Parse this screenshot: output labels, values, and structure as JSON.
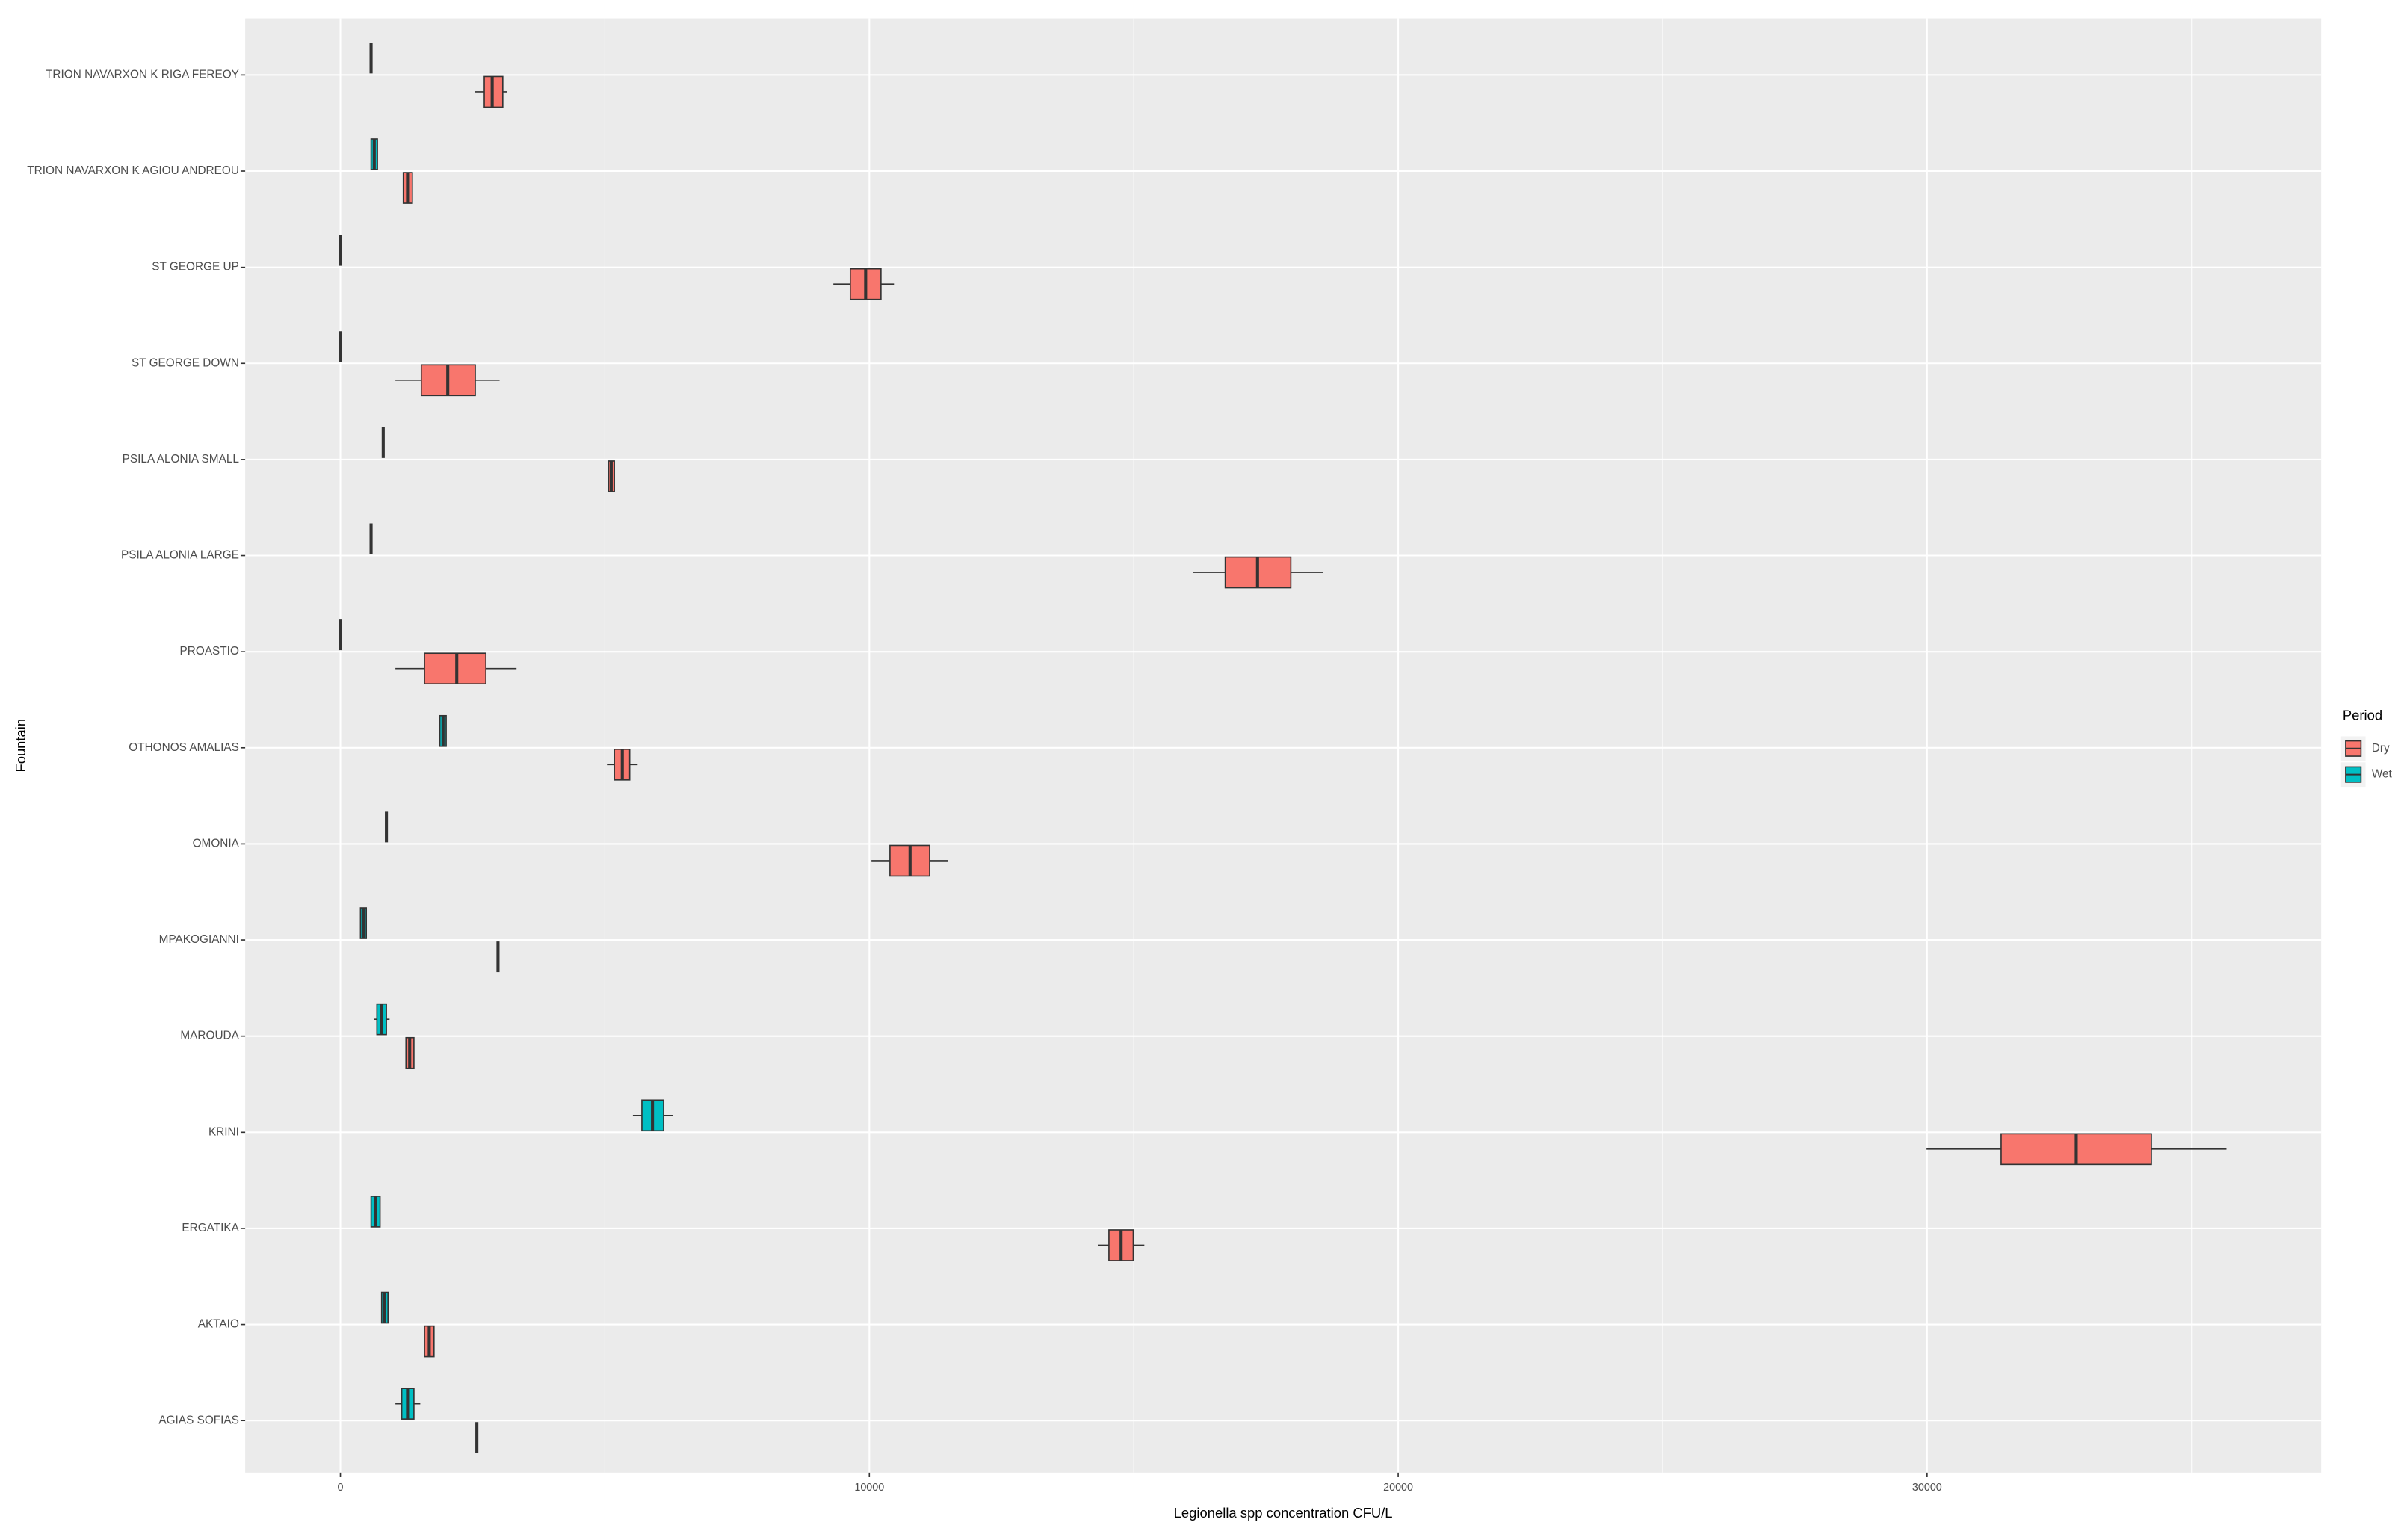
{
  "chart_data": {
    "type": "boxplot",
    "orientation": "horizontal",
    "x_label": "Legionella spp concentration CFU/L",
    "y_label": "Fountain",
    "legend_title": "Period",
    "legend_position": "right",
    "grid": true,
    "xlim": [
      -1800,
      37450
    ],
    "xticks": [
      0,
      10000,
      20000,
      30000
    ],
    "xminor": [
      5000,
      15000,
      25000,
      35000
    ],
    "categories": [
      "TRION NAVARXON K RIGA FEREOY",
      "TRION NAVARXON K AGIOU ANDREOU",
      "ST GEORGE UP",
      "ST GEORGE DOWN",
      "PSILA ALONIA SMALL",
      "PSILA ALONIA LARGE",
      "PROASTIO",
      "OTHONOS AMALIAS",
      "OMONIA",
      "MPAKOGIANNI",
      "MAROUDA",
      "KRINI",
      "ERGATIKA",
      "AKTAIO",
      "AGIAS SOFIAS"
    ],
    "series": [
      {
        "name": "Dry",
        "color": "#F8766D",
        "min": [
          2550,
          1190,
          9320,
          1040,
          5070,
          16120,
          1040,
          5040,
          10040,
          2980,
          1240,
          29990,
          14330,
          1590,
          2580
        ],
        "q1": [
          2720,
          1190,
          9640,
          1530,
          5070,
          16730,
          1590,
          5180,
          10390,
          2980,
          1240,
          31400,
          14530,
          1590,
          2580
        ],
        "median": [
          2870,
          1270,
          9930,
          2030,
          5120,
          17340,
          2200,
          5330,
          10770,
          2980,
          1310,
          32820,
          14760,
          1680,
          2580
        ],
        "q3": [
          3070,
          1360,
          10220,
          2550,
          5180,
          17970,
          2750,
          5470,
          11140,
          2980,
          1390,
          34240,
          14990,
          1770,
          2580
        ],
        "max": [
          3150,
          1360,
          10480,
          3010,
          5180,
          18580,
          3330,
          5620,
          11490,
          2980,
          1390,
          35660,
          15200,
          1770,
          2580
        ]
      },
      {
        "name": "Wet",
        "color": "#00BFC4",
        "min": [
          580,
          580,
          0,
          0,
          810,
          580,
          0,
          1880,
          870,
          380,
          640,
          5530,
          580,
          780,
          1040
        ],
        "q1": [
          580,
          580,
          0,
          0,
          810,
          580,
          0,
          1880,
          870,
          380,
          690,
          5700,
          580,
          780,
          1160
        ],
        "median": [
          580,
          640,
          0,
          0,
          810,
          580,
          0,
          1940,
          870,
          430,
          780,
          5900,
          670,
          840,
          1270
        ],
        "q3": [
          580,
          700,
          0,
          0,
          810,
          580,
          0,
          2000,
          870,
          490,
          870,
          6110,
          750,
          900,
          1390
        ],
        "max": [
          580,
          700,
          0,
          0,
          810,
          580,
          0,
          2000,
          870,
          490,
          930,
          6280,
          750,
          900,
          1510
        ]
      }
    ]
  }
}
